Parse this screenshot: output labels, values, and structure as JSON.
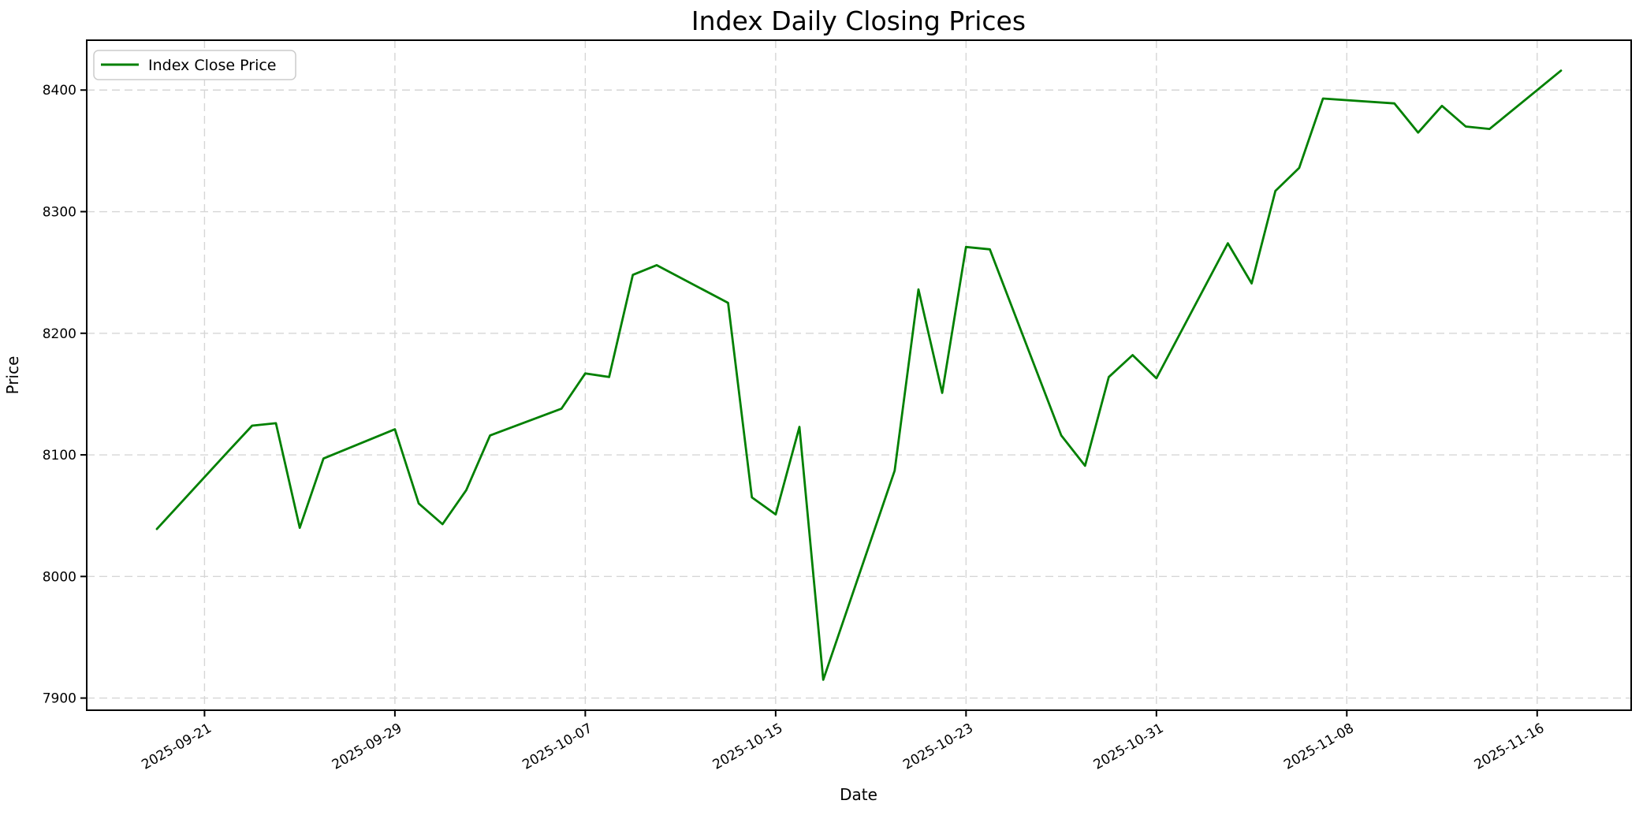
{
  "title": "Index Daily Closing Prices",
  "axes": {
    "xlabel": "Date",
    "ylabel": "Price"
  },
  "legend": {
    "label": "Index Close Price"
  },
  "colors": {
    "line": "#008000",
    "grid": "#d6d6d6",
    "spine": "#000000",
    "background": "#ffffff",
    "legend_border": "#cccccc"
  },
  "chart_data": {
    "type": "line",
    "title": "Index Daily Closing Prices",
    "xlabel": "Date",
    "ylabel": "Price",
    "grid": "dashed",
    "legend_position": "upper left",
    "ylim": [
      7890,
      8441
    ],
    "y_ticks": [
      7900,
      8000,
      8100,
      8200,
      8300,
      8400
    ],
    "x_tick_labels": [
      "2025-09-21",
      "2025-09-29",
      "2025-10-07",
      "2025-10-15",
      "2025-10-23",
      "2025-10-31",
      "2025-11-08",
      "2025-11-16"
    ],
    "series": [
      {
        "name": "Index Close Price",
        "color": "#008000",
        "dates": [
          "2025-09-19",
          "2025-09-22",
          "2025-09-23",
          "2025-09-24",
          "2025-09-25",
          "2025-09-26",
          "2025-09-29",
          "2025-09-30",
          "2025-10-01",
          "2025-10-02",
          "2025-10-03",
          "2025-10-06",
          "2025-10-07",
          "2025-10-08",
          "2025-10-09",
          "2025-10-10",
          "2025-10-13",
          "2025-10-14",
          "2025-10-15",
          "2025-10-16",
          "2025-10-17",
          "2025-10-20",
          "2025-10-21",
          "2025-10-22",
          "2025-10-23",
          "2025-10-24",
          "2025-10-27",
          "2025-10-28",
          "2025-10-29",
          "2025-10-30",
          "2025-10-31",
          "2025-11-03",
          "2025-11-04",
          "2025-11-05",
          "2025-11-06",
          "2025-11-07",
          "2025-11-10",
          "2025-11-11",
          "2025-11-12",
          "2025-11-13",
          "2025-11-14",
          "2025-11-17"
        ],
        "values": [
          8039,
          8103,
          8124,
          8126,
          8040,
          8097,
          8121,
          8060,
          8043,
          8071,
          8116,
          8138,
          8167,
          8164,
          8248,
          8256,
          8225,
          8065,
          8051,
          8123,
          7915,
          8087,
          8236,
          8151,
          8271,
          8269,
          8116,
          8091,
          8164,
          8182,
          8163,
          8274,
          8241,
          8317,
          8336,
          8393,
          8389,
          8365,
          8387,
          8370,
          8368,
          8416
        ]
      }
    ]
  }
}
